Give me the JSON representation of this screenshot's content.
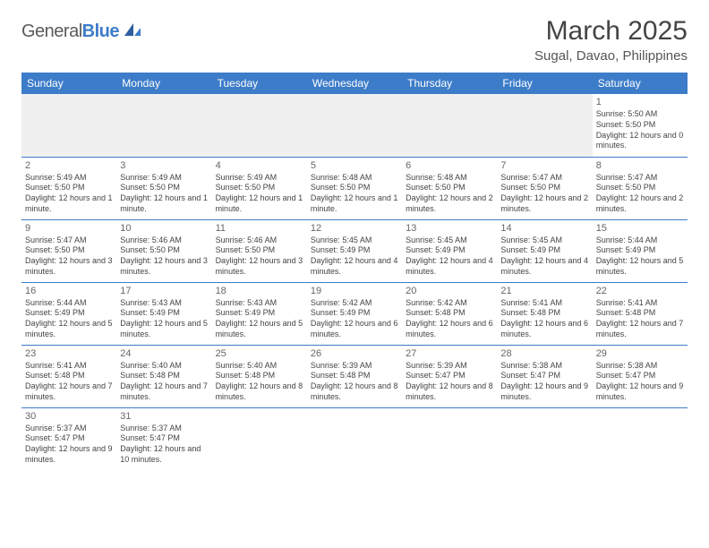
{
  "logo": {
    "general": "General",
    "blue": "Blue"
  },
  "title": "March 2025",
  "location": "Sugal, Davao, Philippines",
  "headers": [
    "Sunday",
    "Monday",
    "Tuesday",
    "Wednesday",
    "Thursday",
    "Friday",
    "Saturday"
  ],
  "colors": {
    "brand": "#3d7cc9",
    "bg": "#ffffff",
    "blank": "#f0f0f0"
  },
  "weeks": [
    [
      null,
      null,
      null,
      null,
      null,
      null,
      {
        "d": "1",
        "sr": "5:50 AM",
        "ss": "5:50 PM",
        "dl": "12 hours and 0 minutes."
      }
    ],
    [
      {
        "d": "2",
        "sr": "5:49 AM",
        "ss": "5:50 PM",
        "dl": "12 hours and 1 minute."
      },
      {
        "d": "3",
        "sr": "5:49 AM",
        "ss": "5:50 PM",
        "dl": "12 hours and 1 minute."
      },
      {
        "d": "4",
        "sr": "5:49 AM",
        "ss": "5:50 PM",
        "dl": "12 hours and 1 minute."
      },
      {
        "d": "5",
        "sr": "5:48 AM",
        "ss": "5:50 PM",
        "dl": "12 hours and 1 minute."
      },
      {
        "d": "6",
        "sr": "5:48 AM",
        "ss": "5:50 PM",
        "dl": "12 hours and 2 minutes."
      },
      {
        "d": "7",
        "sr": "5:47 AM",
        "ss": "5:50 PM",
        "dl": "12 hours and 2 minutes."
      },
      {
        "d": "8",
        "sr": "5:47 AM",
        "ss": "5:50 PM",
        "dl": "12 hours and 2 minutes."
      }
    ],
    [
      {
        "d": "9",
        "sr": "5:47 AM",
        "ss": "5:50 PM",
        "dl": "12 hours and 3 minutes."
      },
      {
        "d": "10",
        "sr": "5:46 AM",
        "ss": "5:50 PM",
        "dl": "12 hours and 3 minutes."
      },
      {
        "d": "11",
        "sr": "5:46 AM",
        "ss": "5:50 PM",
        "dl": "12 hours and 3 minutes."
      },
      {
        "d": "12",
        "sr": "5:45 AM",
        "ss": "5:49 PM",
        "dl": "12 hours and 4 minutes."
      },
      {
        "d": "13",
        "sr": "5:45 AM",
        "ss": "5:49 PM",
        "dl": "12 hours and 4 minutes."
      },
      {
        "d": "14",
        "sr": "5:45 AM",
        "ss": "5:49 PM",
        "dl": "12 hours and 4 minutes."
      },
      {
        "d": "15",
        "sr": "5:44 AM",
        "ss": "5:49 PM",
        "dl": "12 hours and 5 minutes."
      }
    ],
    [
      {
        "d": "16",
        "sr": "5:44 AM",
        "ss": "5:49 PM",
        "dl": "12 hours and 5 minutes."
      },
      {
        "d": "17",
        "sr": "5:43 AM",
        "ss": "5:49 PM",
        "dl": "12 hours and 5 minutes."
      },
      {
        "d": "18",
        "sr": "5:43 AM",
        "ss": "5:49 PM",
        "dl": "12 hours and 5 minutes."
      },
      {
        "d": "19",
        "sr": "5:42 AM",
        "ss": "5:49 PM",
        "dl": "12 hours and 6 minutes."
      },
      {
        "d": "20",
        "sr": "5:42 AM",
        "ss": "5:48 PM",
        "dl": "12 hours and 6 minutes."
      },
      {
        "d": "21",
        "sr": "5:41 AM",
        "ss": "5:48 PM",
        "dl": "12 hours and 6 minutes."
      },
      {
        "d": "22",
        "sr": "5:41 AM",
        "ss": "5:48 PM",
        "dl": "12 hours and 7 minutes."
      }
    ],
    [
      {
        "d": "23",
        "sr": "5:41 AM",
        "ss": "5:48 PM",
        "dl": "12 hours and 7 minutes."
      },
      {
        "d": "24",
        "sr": "5:40 AM",
        "ss": "5:48 PM",
        "dl": "12 hours and 7 minutes."
      },
      {
        "d": "25",
        "sr": "5:40 AM",
        "ss": "5:48 PM",
        "dl": "12 hours and 8 minutes."
      },
      {
        "d": "26",
        "sr": "5:39 AM",
        "ss": "5:48 PM",
        "dl": "12 hours and 8 minutes."
      },
      {
        "d": "27",
        "sr": "5:39 AM",
        "ss": "5:47 PM",
        "dl": "12 hours and 8 minutes."
      },
      {
        "d": "28",
        "sr": "5:38 AM",
        "ss": "5:47 PM",
        "dl": "12 hours and 9 minutes."
      },
      {
        "d": "29",
        "sr": "5:38 AM",
        "ss": "5:47 PM",
        "dl": "12 hours and 9 minutes."
      }
    ],
    [
      {
        "d": "30",
        "sr": "5:37 AM",
        "ss": "5:47 PM",
        "dl": "12 hours and 9 minutes."
      },
      {
        "d": "31",
        "sr": "5:37 AM",
        "ss": "5:47 PM",
        "dl": "12 hours and 10 minutes."
      },
      null,
      null,
      null,
      null,
      null
    ]
  ],
  "labels": {
    "sunrise": "Sunrise: ",
    "sunset": "Sunset: ",
    "daylight": "Daylight: "
  }
}
